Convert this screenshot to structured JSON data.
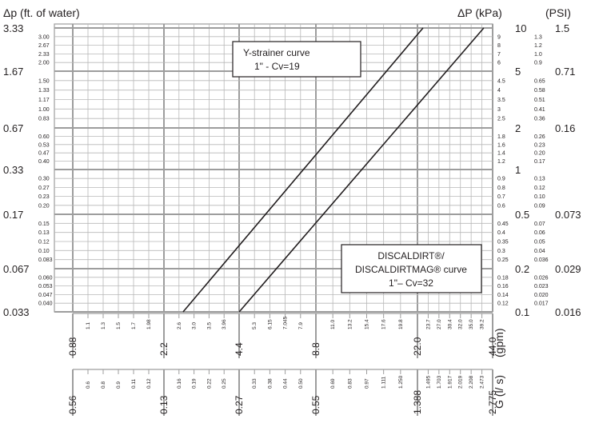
{
  "chart_data": {
    "type": "line",
    "left_axis": {
      "title": "Δp (ft. of water)",
      "major_ticks": [
        "3.33",
        "1.67",
        "0.67",
        "0.33",
        "0.17",
        "0.067",
        "0.033"
      ],
      "minor_ticks": [
        [
          "3.00",
          "2.67",
          "2.33",
          "2.00"
        ],
        [
          "1.50",
          "1.33",
          "1.17",
          "1.00",
          "0.83"
        ],
        [
          "0.60",
          "0.53",
          "0.47",
          "0.40"
        ],
        [
          "0.30",
          "0.27",
          "0.23",
          "0.20"
        ],
        [
          "0.15",
          "0.13",
          "0.12",
          "0.10",
          "0.083"
        ],
        [
          "0.060",
          "0.053",
          "0.047",
          "0.040"
        ]
      ]
    },
    "right_axis_kpa": {
      "title": "ΔP (kPa)",
      "major_ticks": [
        "10",
        "5",
        "2",
        "1",
        "0.5",
        "0.2",
        "0.1"
      ],
      "minor_ticks": [
        [
          "9",
          "8",
          "7",
          "6"
        ],
        [
          "4.5",
          "4",
          "3.5",
          "3",
          "2.5"
        ],
        [
          "1.8",
          "1.6",
          "1.4",
          "1.2"
        ],
        [
          "0.9",
          "0.8",
          "0.7",
          "0.6"
        ],
        [
          "0.45",
          "0.4",
          "0.35",
          "0.3",
          "0.25"
        ],
        [
          "0.18",
          "0.16",
          "0.14",
          "0.12"
        ]
      ]
    },
    "right_axis_psi": {
      "title": "(PSI)",
      "major_ticks": [
        "1.5",
        "0.71",
        "0.16",
        "0.073",
        "0.029",
        "0.016"
      ],
      "minor_ticks": [
        [
          "1.3",
          "1.2",
          "1.0",
          "0.9"
        ],
        [
          "0.65",
          "0.58",
          "0.51",
          "0.41",
          "0.36"
        ],
        [
          "0.26",
          "0.23",
          "0.20",
          "0.17"
        ],
        [
          "0.13",
          "0.12",
          "0.10",
          "0.09"
        ],
        [
          "0.07",
          "0.06",
          "0.05",
          "0.04",
          "0.036"
        ],
        [
          "0.026",
          "0.023",
          "0.020",
          "0.017"
        ]
      ]
    },
    "x_axis_gpm": {
      "title": "(gpm)",
      "major_ticks": [
        "0.88",
        "2.2",
        "4.4",
        "8.8",
        "22.0",
        "44.0"
      ],
      "minor_ticks": [
        [
          "1.1",
          "1.3",
          "1.5",
          "1.7",
          "1.98"
        ],
        [
          "2.6",
          "3.0",
          "3.5",
          "3.96"
        ],
        [
          "5.3",
          "6.15",
          "7.045",
          "7.9"
        ],
        [
          "11.0",
          "13.2",
          "15.4",
          "17.6",
          "19.8"
        ],
        [
          "23.7",
          "27.0",
          "30.4",
          "32.0",
          "35.0",
          "39.2"
        ]
      ]
    },
    "x_axis_ls": {
      "title": "G (l/ s)",
      "major_ticks": [
        "0.56",
        "0.13",
        "0.27",
        "0.55",
        "1.388",
        "2.775"
      ],
      "minor_ticks": [
        [
          "0.6",
          "0.8",
          "0.9",
          "0.11",
          "0.12"
        ],
        [
          "0.16",
          "0.19",
          "0.22",
          "0.25"
        ],
        [
          "0.33",
          "0.38",
          "0.44",
          "0.50"
        ],
        [
          "0.69",
          "0.83",
          "0.97",
          "1.111",
          "1.250"
        ],
        [
          "1.495",
          "1.703",
          "1.917",
          "2.019",
          "2.208",
          "2.473"
        ]
      ]
    },
    "series": [
      {
        "name": "Y-strainer curve 1\" - Cv=19",
        "label_lines": [
          "Y-strainer curve",
          "1\" - Cv=19"
        ],
        "x_gpm": [
          2.46,
          23.0
        ],
        "y_kpa": [
          0.1,
          10
        ]
      },
      {
        "name": "DISCALDIRT/DISCALDIRTMAG curve 1\"– Cv=32",
        "label_lines": [
          "DISCALDIRT®/",
          "DISCALDIRTMAG® curve",
          "1\"– Cv=32"
        ],
        "x_gpm": [
          4.15,
          40.5
        ],
        "y_kpa": [
          0.1,
          10
        ]
      }
    ],
    "xscale": "log",
    "yscale": "log",
    "grid": true
  }
}
